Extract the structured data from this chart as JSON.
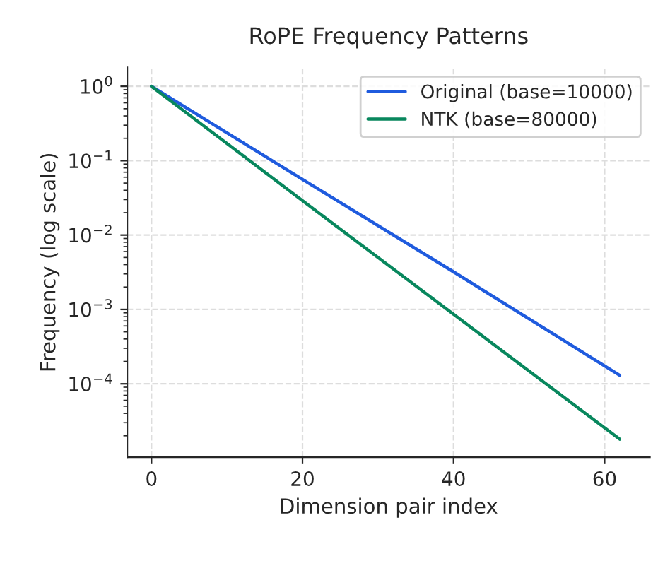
{
  "chart_data": {
    "type": "line",
    "title": "RoPE Frequency Patterns",
    "xlabel": "Dimension pair index",
    "ylabel": "Frequency (log scale)",
    "x": [
      0,
      20,
      40,
      62
    ],
    "series": [
      {
        "name": "Original (base=10000)",
        "color": "#1f5bde",
        "values": [
          1,
          0.056,
          0.0032,
          0.00013
        ]
      },
      {
        "name": "NTK (base=80000)",
        "color": "#08875d",
        "values": [
          1,
          0.029,
          0.00086,
          1.8e-05
        ]
      }
    ],
    "log": "y",
    "xlim": [
      -3.2,
      66
    ],
    "xticks": [
      0,
      20,
      40,
      60
    ],
    "ylim": [
      1.03e-05,
      1.8
    ],
    "yticks": [
      {
        "value": 1,
        "label": "10$^{0}$"
      },
      {
        "value": 0.1,
        "label": "10$^{−1}$"
      },
      {
        "value": 0.01,
        "label": "10$^{−2}$"
      },
      {
        "value": 0.001,
        "label": "10$^{−3}$"
      },
      {
        "value": 0.0001,
        "label": "10$^{−4}$"
      }
    ],
    "grid": true,
    "legend": "top right",
    "line_style": "solid",
    "marker": "none"
  }
}
